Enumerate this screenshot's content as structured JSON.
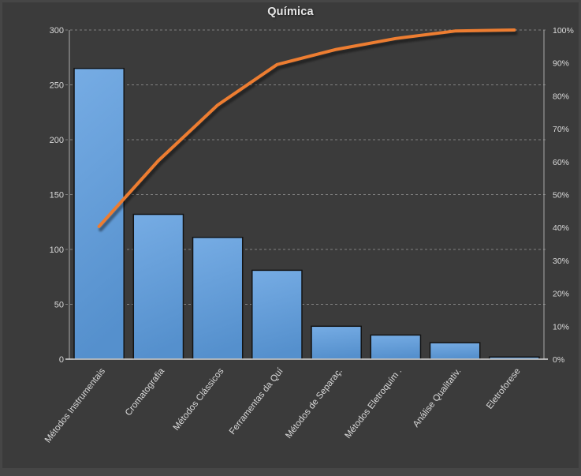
{
  "title": "Química",
  "colors": {
    "background": "#3b3b3b",
    "frame": "#464646",
    "bar_fill_top": "#76ace4",
    "bar_fill_bottom": "#5590cd",
    "bar_border": "#141414",
    "line": "#ed7d31",
    "grid": "#9a9a9a",
    "axis": "#a8a8a8",
    "baseline": "#dcdcdc",
    "text": "#d9d9d9"
  },
  "chart_data": {
    "type": "bar",
    "subtype": "pareto (bars + cumulative % line)",
    "title": "Química",
    "categories": [
      "Métodos Instrumentais",
      "Cromatografia",
      "Métodos Clássicos",
      "Ferramentas da Quí",
      "Métodos de Separaç.",
      "Métodos Eletroquím .",
      "Análise Qualitativ.",
      "Eletroforese"
    ],
    "series": [
      {
        "name": "frequency-bars",
        "type": "bar",
        "axis": "left",
        "values": [
          265,
          132,
          111,
          81,
          30,
          22,
          15,
          2
        ]
      },
      {
        "name": "cumulative-percent-line",
        "type": "line",
        "axis": "right",
        "values": [
          40.3,
          60.3,
          77.2,
          89.5,
          94.1,
          97.4,
          99.7,
          100
        ]
      }
    ],
    "left_axis": {
      "min": 0,
      "max": 300,
      "step": 50,
      "ticks": [
        "0",
        "50",
        "100",
        "150",
        "200",
        "250",
        "300"
      ]
    },
    "right_axis": {
      "min": 0,
      "max": 100,
      "step": 10,
      "ticks": [
        "0%",
        "10%",
        "20%",
        "30%",
        "40%",
        "50%",
        "60%",
        "70%",
        "80%",
        "90%",
        "100%"
      ]
    },
    "grid": true,
    "grid_style": "dashed horizontal",
    "legend": false,
    "xlabel": "",
    "ylabel": ""
  }
}
